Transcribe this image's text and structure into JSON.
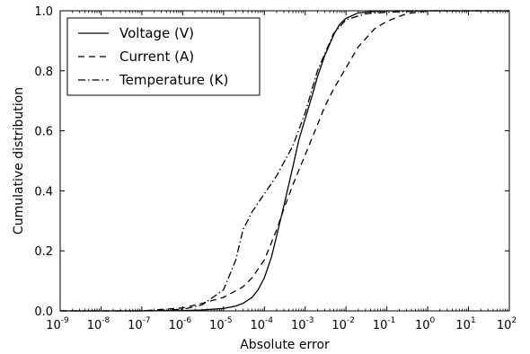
{
  "chart_data": {
    "type": "line",
    "title": "",
    "xlabel": "Absolute error",
    "ylabel": "Cumulative distribution",
    "xscale": "log",
    "xlim": [
      1e-09,
      100
    ],
    "ylim": [
      0,
      1
    ],
    "x_ticks": [
      {
        "base": "10",
        "exp": "-9"
      },
      {
        "base": "10",
        "exp": "-8"
      },
      {
        "base": "10",
        "exp": "-7"
      },
      {
        "base": "10",
        "exp": "-6"
      },
      {
        "base": "10",
        "exp": "-5"
      },
      {
        "base": "10",
        "exp": "-4"
      },
      {
        "base": "10",
        "exp": "-3"
      },
      {
        "base": "10",
        "exp": "-2"
      },
      {
        "base": "10",
        "exp": "-1"
      },
      {
        "base": "10",
        "exp": "0"
      },
      {
        "base": "10",
        "exp": "1"
      },
      {
        "base": "10",
        "exp": "2"
      }
    ],
    "y_ticks": [
      "0.0",
      "0.2",
      "0.4",
      "0.6",
      "0.8",
      "1.0"
    ],
    "grid": false,
    "legend_position": "top-left",
    "series": [
      {
        "name": "Voltage (V)",
        "style": "solid",
        "color": "#000000",
        "x": [
          1e-09,
          1e-07,
          1e-06,
          3e-06,
          1e-05,
          2e-05,
          3e-05,
          5e-05,
          7e-05,
          0.0001,
          0.00015,
          0.0002,
          0.0003,
          0.0005,
          0.0007,
          0.001,
          0.0015,
          0.002,
          0.003,
          0.005,
          0.007,
          0.01,
          0.02,
          0.05,
          0.1,
          1,
          100
        ],
        "y": [
          0,
          0,
          0.001,
          0.003,
          0.008,
          0.016,
          0.025,
          0.045,
          0.07,
          0.11,
          0.18,
          0.25,
          0.35,
          0.48,
          0.57,
          0.64,
          0.72,
          0.78,
          0.85,
          0.92,
          0.955,
          0.975,
          0.993,
          0.998,
          1.0,
          1.0,
          1.0
        ]
      },
      {
        "name": "Current (A)",
        "style": "dashed",
        "color": "#000000",
        "x": [
          1e-09,
          1e-07,
          1e-06,
          3e-06,
          1e-05,
          3e-05,
          5e-05,
          0.0001,
          0.0002,
          0.0003,
          0.0005,
          0.001,
          0.002,
          0.003,
          0.005,
          0.01,
          0.02,
          0.05,
          0.1,
          0.3,
          1,
          100
        ],
        "y": [
          0,
          0,
          0.01,
          0.025,
          0.045,
          0.08,
          0.11,
          0.17,
          0.27,
          0.34,
          0.42,
          0.52,
          0.62,
          0.68,
          0.74,
          0.81,
          0.88,
          0.94,
          0.965,
          0.99,
          1.0,
          1.0
        ]
      },
      {
        "name": "Temperature (K)",
        "style": "dashdot",
        "color": "#000000",
        "x": [
          1e-09,
          1e-07,
          1e-06,
          3e-06,
          1e-05,
          2e-05,
          3e-05,
          5e-05,
          0.0001,
          0.0002,
          0.0005,
          0.001,
          0.002,
          0.005,
          0.01,
          0.03,
          0.1,
          1,
          100
        ],
        "y": [
          0,
          0,
          0.005,
          0.02,
          0.07,
          0.17,
          0.27,
          0.33,
          0.39,
          0.45,
          0.55,
          0.66,
          0.8,
          0.925,
          0.97,
          0.99,
          0.995,
          1.0,
          1.0
        ]
      }
    ]
  }
}
